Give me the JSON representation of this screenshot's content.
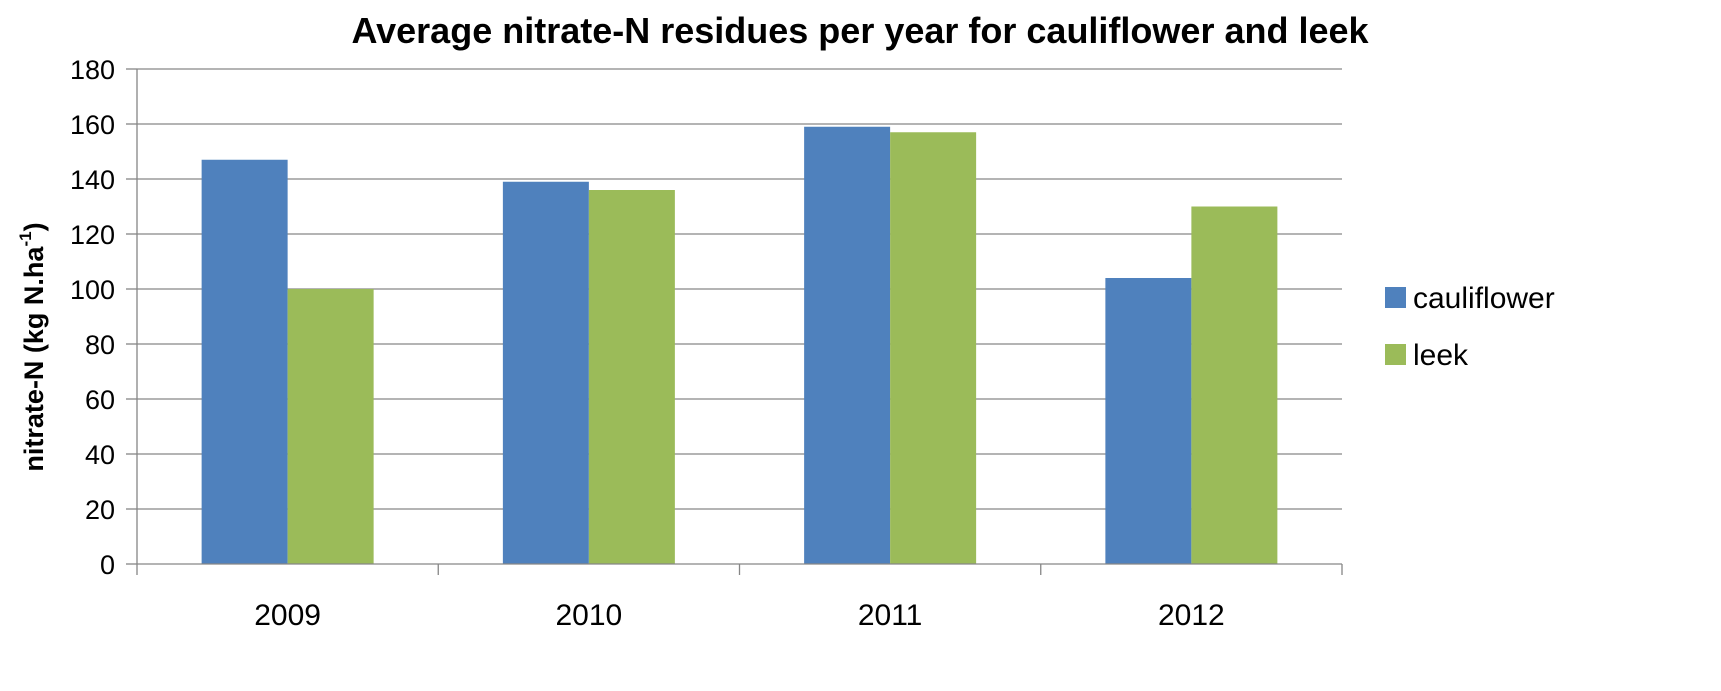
{
  "chart_data": {
    "type": "bar",
    "title": "Average nitrate-N residues per year for cauliflower and leek",
    "ylabel": "nitrate-N (kg N.ha",
    "ylabel_superscript": "-1",
    "ylabel_suffix": ")",
    "xlabel": "",
    "categories": [
      "2009",
      "2010",
      "2011",
      "2012"
    ],
    "series": [
      {
        "name": "cauliflower",
        "color": "#4F81BD",
        "values": [
          147,
          139,
          159,
          104
        ]
      },
      {
        "name": "leek",
        "color": "#9BBB59",
        "values": [
          100,
          136,
          157,
          130
        ]
      }
    ],
    "ylim": [
      0,
      180
    ],
    "yticks": [
      0,
      20,
      40,
      60,
      80,
      100,
      120,
      140,
      160,
      180
    ],
    "ytick_labels": [
      "0",
      "20",
      "40",
      "60",
      "80",
      "100",
      "120",
      "140",
      "160",
      "180"
    ],
    "grid": true,
    "legend_position": "right"
  }
}
